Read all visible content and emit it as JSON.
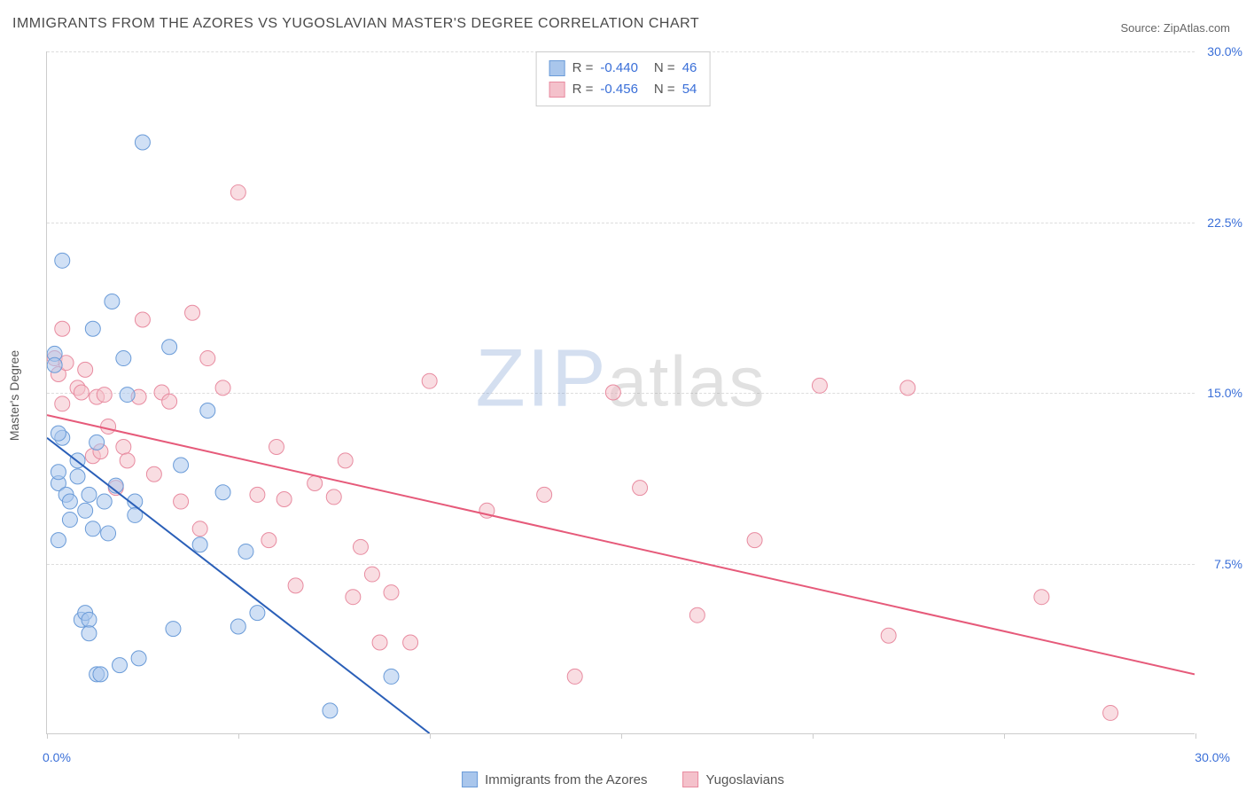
{
  "title": "IMMIGRANTS FROM THE AZORES VS YUGOSLAVIAN MASTER'S DEGREE CORRELATION CHART",
  "source_label": "Source: ZipAtlas.com",
  "ylabel": "Master's Degree",
  "watermark": {
    "left": "ZIP",
    "right": "atlas"
  },
  "chart": {
    "type": "scatter",
    "xlim": [
      0,
      30
    ],
    "ylim": [
      0,
      30
    ],
    "xtick_labels": [
      "0.0%",
      "30.0%"
    ],
    "ytick_labels": [
      "7.5%",
      "15.0%",
      "22.5%",
      "30.0%"
    ],
    "ytick_values": [
      7.5,
      15.0,
      22.5,
      30.0
    ],
    "background_color": "#ffffff",
    "grid_color": "#dddddd",
    "axis_color": "#cccccc",
    "marker_radius": 8.5,
    "marker_opacity": 0.55,
    "line_width": 2,
    "tick_fontsize": 14,
    "tick_color": "#3a6fd8",
    "label_fontsize": 14
  },
  "series": [
    {
      "name": "Immigrants from the Azores",
      "marker_fill": "#a9c6ec",
      "marker_stroke": "#6a9bd8",
      "line_color": "#2a5fb8",
      "R": "-0.440",
      "N": "46",
      "trend": {
        "x1": 0,
        "y1": 13.0,
        "x2": 10.0,
        "y2": 0
      },
      "points": [
        [
          0.2,
          16.7
        ],
        [
          0.2,
          16.2
        ],
        [
          0.4,
          20.8
        ],
        [
          0.4,
          13.0
        ],
        [
          0.3,
          11.0
        ],
        [
          0.3,
          11.5
        ],
        [
          0.3,
          8.5
        ],
        [
          0.3,
          13.2
        ],
        [
          0.5,
          10.5
        ],
        [
          0.6,
          10.2
        ],
        [
          0.6,
          9.4
        ],
        [
          0.8,
          12.0
        ],
        [
          0.8,
          11.3
        ],
        [
          0.9,
          5.0
        ],
        [
          1.0,
          9.8
        ],
        [
          1.0,
          5.3
        ],
        [
          1.1,
          5.0
        ],
        [
          1.1,
          10.5
        ],
        [
          1.1,
          4.4
        ],
        [
          1.2,
          17.8
        ],
        [
          1.2,
          9.0
        ],
        [
          1.3,
          12.8
        ],
        [
          1.3,
          2.6
        ],
        [
          1.4,
          2.6
        ],
        [
          1.5,
          10.2
        ],
        [
          1.6,
          8.8
        ],
        [
          1.7,
          19.0
        ],
        [
          1.8,
          10.9
        ],
        [
          1.9,
          3.0
        ],
        [
          2.0,
          16.5
        ],
        [
          2.1,
          14.9
        ],
        [
          2.3,
          10.2
        ],
        [
          2.3,
          9.6
        ],
        [
          2.4,
          3.3
        ],
        [
          2.5,
          26.0
        ],
        [
          3.2,
          17.0
        ],
        [
          3.3,
          4.6
        ],
        [
          3.5,
          11.8
        ],
        [
          4.0,
          8.3
        ],
        [
          4.2,
          14.2
        ],
        [
          4.6,
          10.6
        ],
        [
          5.0,
          4.7
        ],
        [
          5.2,
          8.0
        ],
        [
          5.5,
          5.3
        ],
        [
          7.4,
          1.0
        ],
        [
          9.0,
          2.5
        ]
      ]
    },
    {
      "name": "Yugoslavians",
      "marker_fill": "#f4c1cb",
      "marker_stroke": "#e88ba0",
      "line_color": "#e65a7a",
      "R": "-0.456",
      "N": "54",
      "trend": {
        "x1": 0,
        "y1": 14.0,
        "x2": 30.0,
        "y2": 2.6
      },
      "points": [
        [
          0.2,
          16.5
        ],
        [
          0.3,
          15.8
        ],
        [
          0.4,
          17.8
        ],
        [
          0.4,
          14.5
        ],
        [
          0.5,
          16.3
        ],
        [
          0.8,
          15.2
        ],
        [
          0.9,
          15.0
        ],
        [
          1.0,
          16.0
        ],
        [
          1.2,
          12.2
        ],
        [
          1.3,
          14.8
        ],
        [
          1.4,
          12.4
        ],
        [
          1.5,
          14.9
        ],
        [
          1.6,
          13.5
        ],
        [
          1.8,
          10.8
        ],
        [
          2.0,
          12.6
        ],
        [
          2.1,
          12.0
        ],
        [
          2.4,
          14.8
        ],
        [
          2.5,
          18.2
        ],
        [
          2.8,
          11.4
        ],
        [
          3.0,
          15.0
        ],
        [
          3.2,
          14.6
        ],
        [
          3.5,
          10.2
        ],
        [
          3.8,
          18.5
        ],
        [
          4.0,
          9.0
        ],
        [
          4.2,
          16.5
        ],
        [
          4.6,
          15.2
        ],
        [
          5.0,
          23.8
        ],
        [
          5.5,
          10.5
        ],
        [
          5.8,
          8.5
        ],
        [
          6.0,
          12.6
        ],
        [
          6.2,
          10.3
        ],
        [
          6.5,
          6.5
        ],
        [
          7.0,
          11.0
        ],
        [
          7.5,
          10.4
        ],
        [
          7.8,
          12.0
        ],
        [
          8.0,
          6.0
        ],
        [
          8.2,
          8.2
        ],
        [
          8.5,
          7.0
        ],
        [
          8.7,
          4.0
        ],
        [
          9.0,
          6.2
        ],
        [
          9.5,
          4.0
        ],
        [
          10.0,
          15.5
        ],
        [
          11.5,
          9.8
        ],
        [
          13.0,
          10.5
        ],
        [
          13.8,
          2.5
        ],
        [
          14.8,
          15.0
        ],
        [
          15.5,
          10.8
        ],
        [
          18.5,
          8.5
        ],
        [
          20.2,
          15.3
        ],
        [
          22.0,
          4.3
        ],
        [
          22.5,
          15.2
        ],
        [
          26.0,
          6.0
        ],
        [
          27.8,
          0.9
        ],
        [
          17.0,
          5.2
        ]
      ]
    }
  ],
  "legend_bottom": [
    {
      "label": "Immigrants from the Azores",
      "series": 0
    },
    {
      "label": "Yugoslavians",
      "series": 1
    }
  ]
}
